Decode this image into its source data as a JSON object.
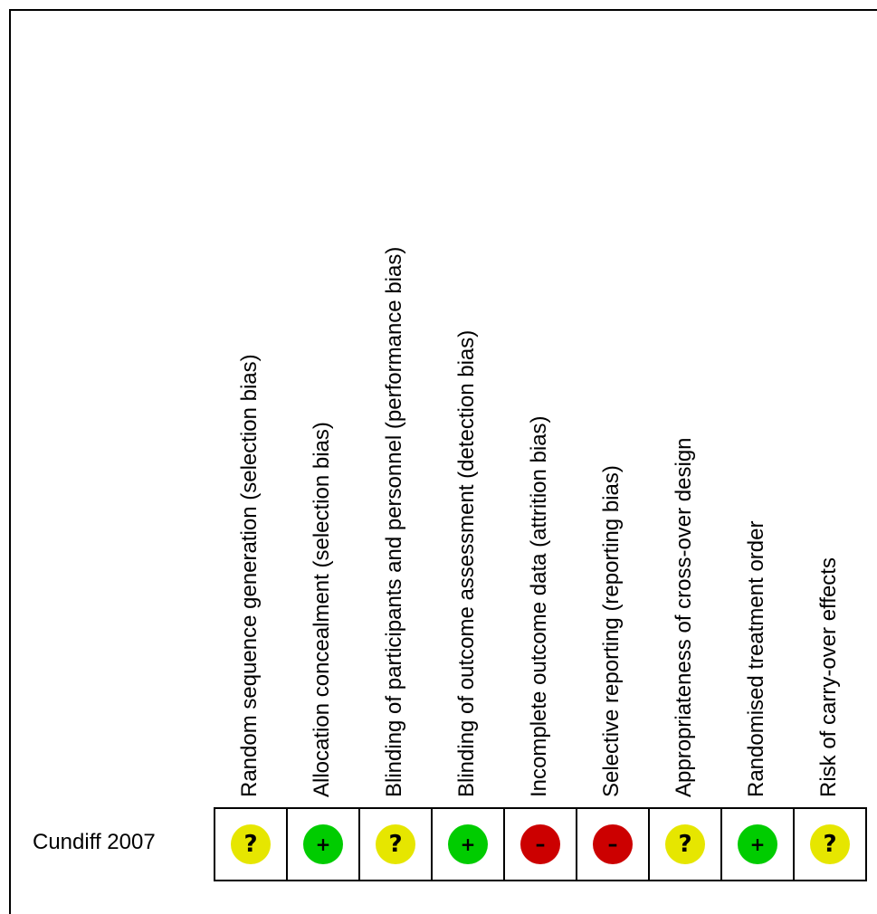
{
  "study": "Cundiff 2007",
  "domains": [
    "Random sequence generation (selection bias)",
    "Allocation concealment (selection bias)",
    "Blinding of participants and personnel (performance bias)",
    "Blinding of outcome assessment (detection bias)",
    "Incomplete outcome data (attrition bias)",
    "Selective reporting (reporting bias)",
    "Appropriateness of cross-over design",
    "Randomised treatment order",
    "Risk of carry-over effects"
  ],
  "judgements": [
    {
      "risk": "unclear",
      "symbol": "?"
    },
    {
      "risk": "low",
      "symbol": "+"
    },
    {
      "risk": "unclear",
      "symbol": "?"
    },
    {
      "risk": "low",
      "symbol": "+"
    },
    {
      "risk": "high",
      "symbol": "–"
    },
    {
      "risk": "high",
      "symbol": "–"
    },
    {
      "risk": "unclear",
      "symbol": "?"
    },
    {
      "risk": "low",
      "symbol": "+"
    },
    {
      "risk": "unclear",
      "symbol": "?"
    }
  ],
  "colors": {
    "low": "#00cc00",
    "unclear": "#e6e600",
    "high": "#cc0000"
  }
}
